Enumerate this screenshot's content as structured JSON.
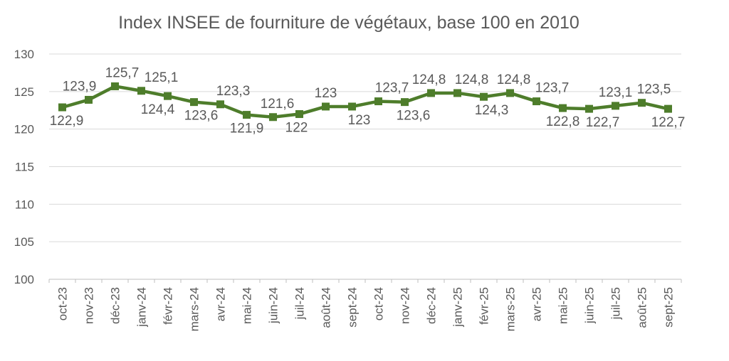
{
  "chart_data": {
    "type": "line",
    "title": "Index INSEE de fourniture de végétaux, base 100 en 2010",
    "categories": [
      "oct-23",
      "nov-23",
      "déc-23",
      "janv-24",
      "févr-24",
      "mars-24",
      "avr-24",
      "mai-24",
      "juin-24",
      "juil-24",
      "août-24",
      "sept-24",
      "oct-24",
      "nov-24",
      "déc-24",
      "janv-25",
      "févr-25",
      "mars-25",
      "avr-25",
      "mai-25",
      "juin-25",
      "juil-25",
      "août-25",
      "sept-25"
    ],
    "series": [
      {
        "values": [
          122.9,
          123.9,
          125.7,
          125.1,
          124.4,
          123.6,
          123.3,
          121.9,
          121.6,
          122,
          123,
          123,
          123.7,
          123.6,
          124.8,
          124.8,
          124.3,
          124.8,
          123.7,
          122.8,
          122.7,
          123.1,
          123.5,
          122.7
        ],
        "point_labels": [
          "122,9",
          "123,9",
          "125,7",
          "125,1",
          "124,4",
          "123,6",
          "123,3",
          "121,9",
          "121,6",
          "122",
          "123",
          "123",
          "123,7",
          "123,6",
          "124,8",
          "124,8",
          "124,3",
          "124,8",
          "123,7",
          "122,8",
          "122,7",
          "123,1",
          "123,5",
          "122,7"
        ],
        "label_side": [
          "below",
          "above",
          "above",
          "above",
          "below",
          "below",
          "above",
          "below",
          "above",
          "below",
          "above",
          "below",
          "above",
          "below",
          "above",
          "above",
          "below",
          "above",
          "above",
          "below",
          "below",
          "above",
          "above",
          "below"
        ],
        "label_dx": [
          6,
          -13,
          10,
          28,
          -14,
          10,
          18,
          0,
          6,
          -4,
          0,
          10,
          19,
          12,
          -3,
          20,
          11,
          5,
          22,
          0,
          19,
          0,
          17,
          0
        ]
      }
    ],
    "xlabel": "",
    "ylabel": "",
    "ylim": [
      100,
      130
    ],
    "yticks": [
      100,
      105,
      110,
      115,
      120,
      125,
      130
    ],
    "grid": true,
    "legend": "none",
    "line_color": "#4e7d2b",
    "marker": "square"
  },
  "style": {
    "background": "#ffffff",
    "title_color": "#595959",
    "axis_text_color": "#595959",
    "data_label_color": "#595959",
    "gridline_color": "#d9d9d9",
    "axis_line_color": "#bfbfbf"
  }
}
